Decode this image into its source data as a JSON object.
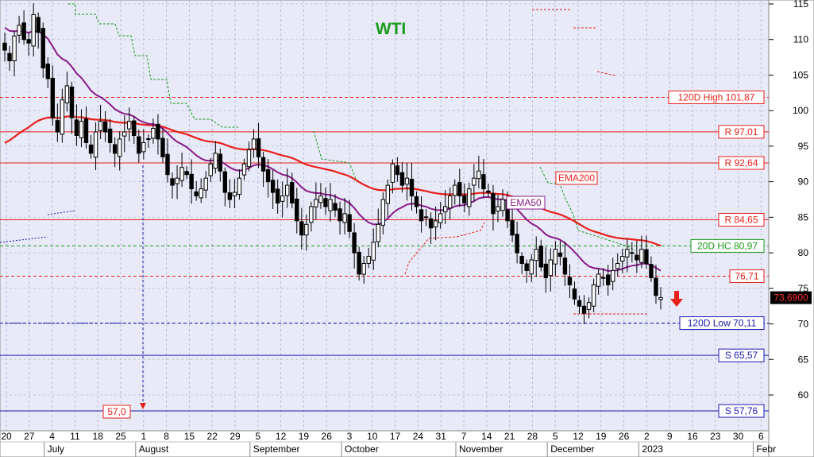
{
  "chart_data": {
    "type": "candlestick",
    "title": "WTI",
    "colors": {
      "background": "#e8eaf8",
      "title": "#1a9a1a",
      "ema200": "#e8201a",
      "ema50": "#8a1a8a",
      "resistance": "#e8201a",
      "support": "#1a1ab0",
      "hc20": "#1a9a1a",
      "candle": "#000000",
      "trail_green": "#1a9a1a",
      "trail_red": "#e8201a"
    },
    "ylim": [
      55,
      115
    ],
    "y_ticks": [
      60,
      65,
      70,
      75,
      80,
      85,
      90,
      95,
      100,
      105,
      110,
      115
    ],
    "x_ticks": [
      "20",
      "27",
      "4",
      "11",
      "18",
      "25",
      "1",
      "8",
      "15",
      "22",
      "29",
      "5",
      "12",
      "19",
      "26",
      "3",
      "10",
      "17",
      "24",
      "31",
      "7",
      "14",
      "21",
      "28",
      "5",
      "12",
      "19",
      "26",
      "2",
      "9",
      "16",
      "23",
      "30",
      "6"
    ],
    "months": [
      "July",
      "August",
      "September",
      "October",
      "November",
      "December",
      "2023",
      "Febr"
    ],
    "levels": [
      {
        "name": "120D High",
        "label": "120D High 101,87",
        "value": 101.87,
        "color": "#e8201a",
        "style": "dashed"
      },
      {
        "name": "R1",
        "label": "R 97,01",
        "value": 97.01,
        "color": "#e8201a",
        "style": "solid"
      },
      {
        "name": "R2",
        "label": "R 92,64",
        "value": 92.64,
        "color": "#e8201a",
        "style": "solid"
      },
      {
        "name": "R3",
        "label": "R 84,65",
        "value": 84.65,
        "color": "#e8201a",
        "style": "solid"
      },
      {
        "name": "20D HC",
        "label": "20D HC 80,97",
        "value": 80.97,
        "color": "#1a9a1a",
        "style": "dashed"
      },
      {
        "name": "level-76",
        "label": "76,71",
        "value": 76.71,
        "color": "#e8201a",
        "style": "dashed"
      },
      {
        "name": "120D Low",
        "label": "120D Low 70,11",
        "value": 70.11,
        "color": "#1a1ab0",
        "style": "dashed"
      },
      {
        "name": "S1",
        "label": "S 65,57",
        "value": 65.57,
        "color": "#1a1ab0",
        "style": "solid"
      },
      {
        "name": "S2",
        "label": "S 57,76",
        "value": 57.76,
        "color": "#1a1ab0",
        "style": "solid"
      }
    ],
    "annotations": {
      "last_price": "73,6900",
      "target": "57,0",
      "ema200_label": "EMA200",
      "ema50_label": "EMA50"
    },
    "closes": [
      108.5,
      107.0,
      110.5,
      112.0,
      110.0,
      109.5,
      113.5,
      111.0,
      106.0,
      104.5,
      99.0,
      97.0,
      101.5,
      103.5,
      99.0,
      96.5,
      98.5,
      95.5,
      94.0,
      97.0,
      98.5,
      97.0,
      95.5,
      94.0,
      96.0,
      97.0,
      98.5,
      96.5,
      94.0,
      95.5,
      96.0,
      97.5,
      96.0,
      93.5,
      91.0,
      89.5,
      90.5,
      92.0,
      91.0,
      89.0,
      88.0,
      89.0,
      90.5,
      92.5,
      94.0,
      91.5,
      88.5,
      87.5,
      88.5,
      90.5,
      92.5,
      94.5,
      96.0,
      93.5,
      91.5,
      90.0,
      88.5,
      87.0,
      88.0,
      89.5,
      87.0,
      84.5,
      82.5,
      84.0,
      86.5,
      87.5,
      88.0,
      86.5,
      87.5,
      86.0,
      84.5,
      85.5,
      83.0,
      80.0,
      77.0,
      78.5,
      79.5,
      81.5,
      84.0,
      87.5,
      89.5,
      92.5,
      91.0,
      89.5,
      90.5,
      88.0,
      86.5,
      84.5,
      85.0,
      83.5,
      84.5,
      85.5,
      86.5,
      88.0,
      89.5,
      88.0,
      87.0,
      89.0,
      90.5,
      91.5,
      89.0,
      88.5,
      85.5,
      86.5,
      87.5,
      84.5,
      82.5,
      80.0,
      78.5,
      77.5,
      79.0,
      80.5,
      78.0,
      76.5,
      79.0,
      80.5,
      79.5,
      77.0,
      75.5,
      73.5,
      72.5,
      71.5,
      73.0,
      75.5,
      77.0,
      76.5,
      75.5,
      77.5,
      78.5,
      79.5,
      80.5,
      80.0,
      79.0,
      80.5,
      78.5,
      76.5,
      74.0,
      73.7
    ]
  }
}
